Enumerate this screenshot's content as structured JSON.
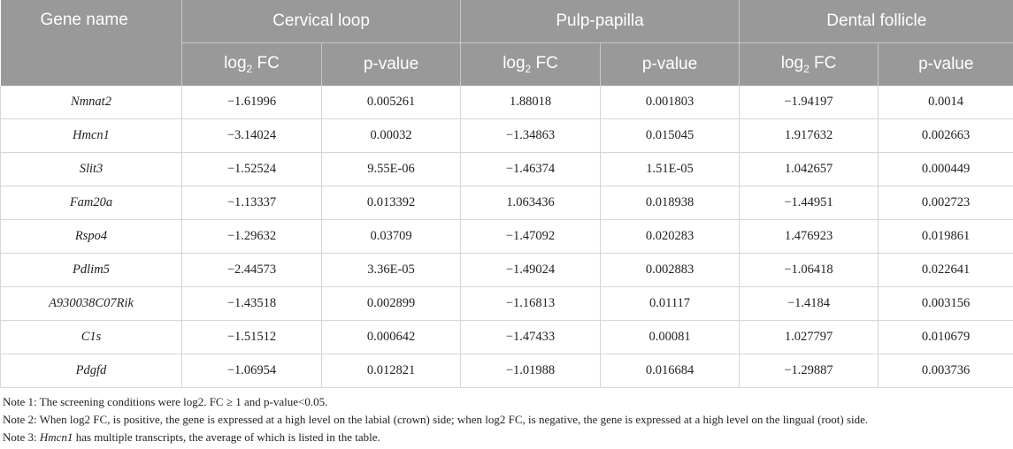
{
  "table": {
    "headers": {
      "gene_name": "Gene name",
      "groups": [
        "Cervical loop",
        "Pulp-papilla",
        "Dental follicle"
      ],
      "sub": {
        "log_prefix": "log",
        "log_sub": "2",
        "log_suffix": " FC",
        "pvalue": "p-value"
      }
    },
    "rows": [
      {
        "gene": "Nmnat2",
        "values": [
          "−1.61996",
          "0.005261",
          "1.88018",
          "0.001803",
          "−1.94197",
          "0.0014"
        ]
      },
      {
        "gene": "Hmcn1",
        "values": [
          "−3.14024",
          "0.00032",
          "−1.34863",
          "0.015045",
          "1.917632",
          "0.002663"
        ]
      },
      {
        "gene": "Slit3",
        "values": [
          "−1.52524",
          "9.55E-06",
          "−1.46374",
          "1.51E-05",
          "1.042657",
          "0.000449"
        ]
      },
      {
        "gene": "Fam20a",
        "values": [
          "−1.13337",
          "0.013392",
          "1.063436",
          "0.018938",
          "−1.44951",
          "0.002723"
        ]
      },
      {
        "gene": "Rspo4",
        "values": [
          "−1.29632",
          "0.03709",
          "−1.47092",
          "0.020283",
          "1.476923",
          "0.019861"
        ]
      },
      {
        "gene": "Pdlim5",
        "values": [
          "−2.44573",
          "3.36E-05",
          "−1.49024",
          "0.002883",
          "−1.06418",
          "0.022641"
        ]
      },
      {
        "gene": "A930038C07Rik",
        "values": [
          "−1.43518",
          "0.002899",
          "−1.16813",
          "0.01117",
          "−1.4184",
          "0.003156"
        ]
      },
      {
        "gene": "C1s",
        "values": [
          "−1.51512",
          "0.000642",
          "−1.47433",
          "0.00081",
          "1.027797",
          "0.010679"
        ]
      },
      {
        "gene": "Pdgfd",
        "values": [
          "−1.06954",
          "0.012821",
          "−1.01988",
          "0.016684",
          "−1.29887",
          "0.003736"
        ]
      }
    ]
  },
  "notes": {
    "note1": "Note 1: The screening conditions were log2. FC ≥ 1 and p-value<0.05.",
    "note2": "Note 2: When log2 FC, is positive, the gene is expressed at a high level on the labial (crown) side; when log2 FC, is negative, the gene is expressed at a high level on the lingual (root) side.",
    "note3_prefix": "Note 3: ",
    "note3_gene": "Hmcn1",
    "note3_suffix": " has multiple transcripts, the average of which is listed in the table."
  },
  "colors": {
    "header_bg": "#999999",
    "header_text": "#ffffff",
    "grid": "#d6d6d6"
  }
}
